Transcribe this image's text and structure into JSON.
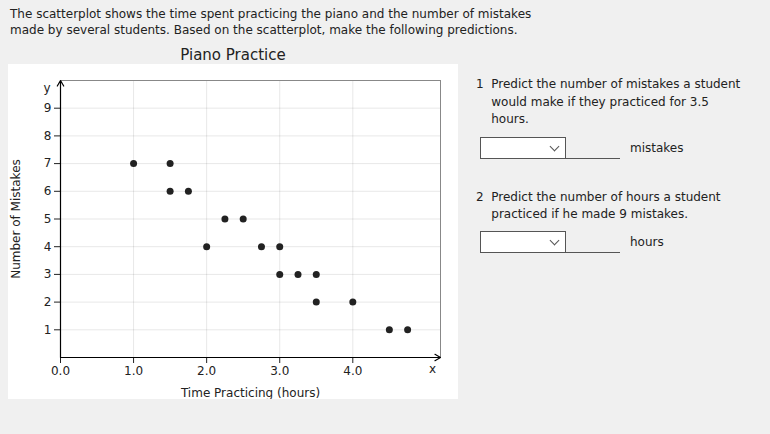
{
  "chart_data": {
    "type": "scatter",
    "title": "Piano Practice",
    "subtitle": "The scatterplot shows the time spent practicing the piano and the number of mistakes\nmade by several students. Based on the scatterplot, make the following predictions.",
    "x_label": "Time Practicing (hours)",
    "y_label": "Number of Mistakes",
    "x": [
      1.0,
      1.5,
      1.5,
      1.75,
      2.0,
      2.25,
      2.5,
      2.75,
      3.0,
      3.0,
      3.25,
      3.5,
      3.5,
      4.0,
      4.5,
      4.75
    ],
    "values": [
      7.0,
      7.0,
      6.0,
      6.0,
      4.0,
      5.0,
      5.0,
      4.0,
      4.0,
      3.0,
      3.0,
      3.0,
      2.0,
      2.0,
      1.0,
      1.0
    ],
    "color": "#222222",
    "xlim": [
      0,
      5.2
    ],
    "ylim": [
      0,
      10
    ],
    "xticks": [
      0,
      1,
      2,
      3,
      4
    ],
    "yticks": [
      1,
      2,
      3,
      4,
      5,
      6,
      7,
      8,
      9
    ],
    "grid": true,
    "annotations": [
      "1  Predict the number of mistakes a student\n    would make if they practiced for 3.5\n    hours.",
      "mistakes",
      "2  Predict the number of hours a student\n    practiced if he made 9 mistakes.",
      "hours",
      "x",
      "y"
    ]
  }
}
